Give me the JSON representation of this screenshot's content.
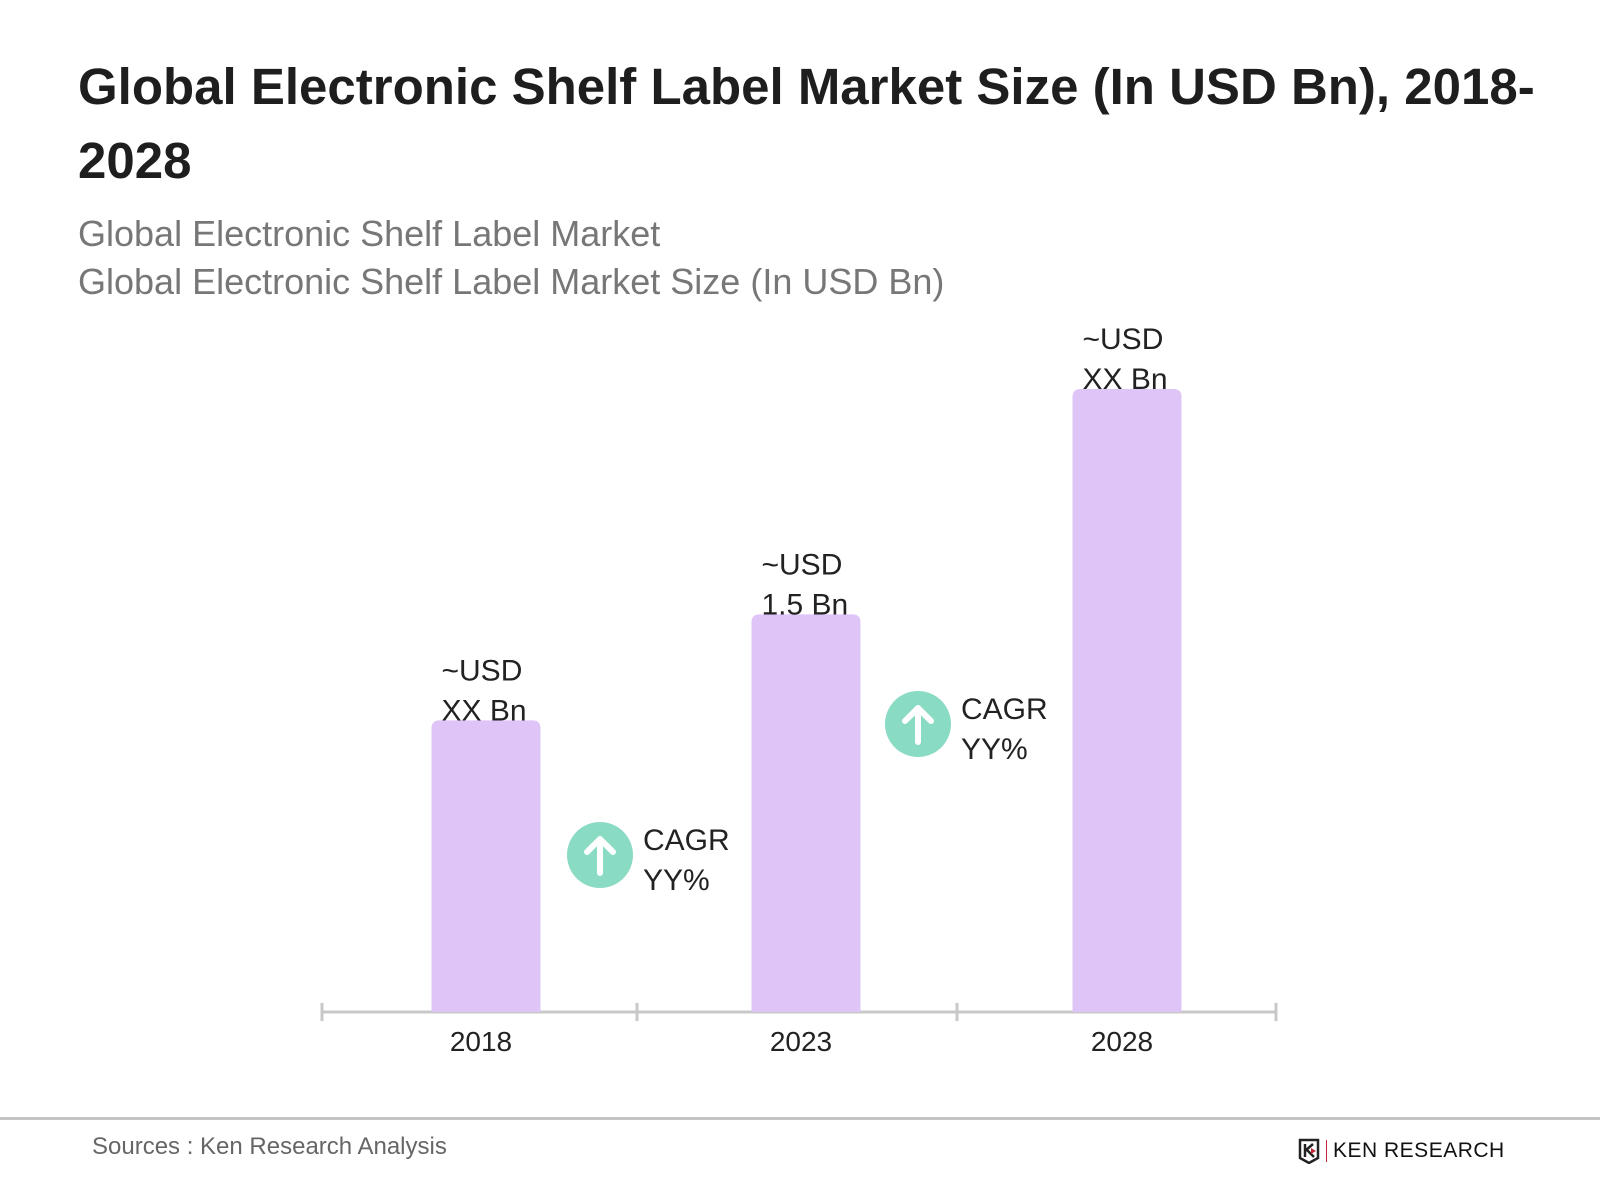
{
  "title": "Global Electronic Shelf Label Market Size (In USD Bn), 2018-2028",
  "subtitle_lines": [
    "Global Electronic Shelf Label Market",
    "Global Electronic Shelf Label Market Size (In USD Bn)"
  ],
  "chart_data": {
    "type": "bar",
    "categories": [
      "2018",
      "2023",
      "2028"
    ],
    "values": [
      1.1,
      1.5,
      2.35
    ],
    "data_labels": [
      [
        "~USD",
        "XX Bn"
      ],
      [
        "~USD",
        "1.5 Bn"
      ],
      [
        "~USD",
        "XX Bn"
      ]
    ],
    "annotations": [
      {
        "between": [
          "2018",
          "2023"
        ],
        "lines": [
          "CAGR",
          "YY%"
        ],
        "icon": "arrow-up-circle-icon"
      },
      {
        "between": [
          "2023",
          "2028"
        ],
        "lines": [
          "CAGR",
          "YY%"
        ],
        "icon": "arrow-up-circle-icon"
      }
    ],
    "ylim": [
      0,
      2.35
    ],
    "grid": false,
    "colors": {
      "bar": "#dfc4f7",
      "cagr_icon": "#8adbc4",
      "axis": "#c8c8c8"
    }
  },
  "footer": {
    "source": "Sources : Ken Research Analysis",
    "logo_text": "KEN RESEARCH"
  }
}
